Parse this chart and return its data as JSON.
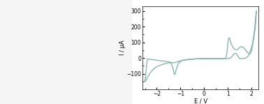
{
  "xlabel": "E / V",
  "ylabel": "I / μA",
  "xlim": [
    -2.6,
    2.3
  ],
  "ylim": [
    -200,
    330
  ],
  "xticks": [
    -2,
    -1,
    0,
    1,
    2
  ],
  "yticks": [
    -100,
    0,
    100,
    200,
    300
  ],
  "line_color": "#8ab5b2",
  "line_width": 1.0,
  "bg_color": "#ffffff",
  "mol_image": "left_placeholder",
  "cv_trace": [
    [
      -2.55,
      -150
    ],
    [
      -2.5,
      -148
    ],
    [
      -2.45,
      -140
    ],
    [
      -2.4,
      -125
    ],
    [
      -2.3,
      -100
    ],
    [
      -2.2,
      -80
    ],
    [
      -2.1,
      -65
    ],
    [
      -2.0,
      -55
    ],
    [
      -1.9,
      -48
    ],
    [
      -1.8,
      -43
    ],
    [
      -1.7,
      -38
    ],
    [
      -1.6,
      -34
    ],
    [
      -1.5,
      -30
    ],
    [
      -1.45,
      -30
    ],
    [
      -1.4,
      -33
    ],
    [
      -1.35,
      -50
    ],
    [
      -1.3,
      -75
    ],
    [
      -1.28,
      -95
    ],
    [
      -1.25,
      -105
    ],
    [
      -1.22,
      -100
    ],
    [
      -1.2,
      -85
    ],
    [
      -1.15,
      -60
    ],
    [
      -1.1,
      -40
    ],
    [
      -1.05,
      -28
    ],
    [
      -1.0,
      -22
    ],
    [
      -0.95,
      -18
    ],
    [
      -0.9,
      -15
    ],
    [
      -0.8,
      -12
    ],
    [
      -0.7,
      -10
    ],
    [
      -0.6,
      -8
    ],
    [
      -0.5,
      -7
    ],
    [
      -0.4,
      -6
    ],
    [
      -0.3,
      -5
    ],
    [
      -0.2,
      -5
    ],
    [
      -0.1,
      -4
    ],
    [
      0.0,
      -4
    ],
    [
      0.1,
      -4
    ],
    [
      0.2,
      -4
    ],
    [
      0.3,
      -4
    ],
    [
      0.4,
      -4
    ],
    [
      0.5,
      -4
    ],
    [
      0.6,
      -3
    ],
    [
      0.7,
      -3
    ],
    [
      0.8,
      -3
    ],
    [
      0.85,
      -3
    ],
    [
      0.9,
      -2
    ],
    [
      0.92,
      5
    ],
    [
      0.95,
      25
    ],
    [
      0.98,
      60
    ],
    [
      1.0,
      95
    ],
    [
      1.02,
      120
    ],
    [
      1.05,
      130
    ],
    [
      1.08,
      125
    ],
    [
      1.1,
      110
    ],
    [
      1.15,
      88
    ],
    [
      1.2,
      72
    ],
    [
      1.25,
      60
    ],
    [
      1.3,
      55
    ],
    [
      1.35,
      52
    ],
    [
      1.4,
      55
    ],
    [
      1.45,
      60
    ],
    [
      1.5,
      68
    ],
    [
      1.55,
      72
    ],
    [
      1.6,
      72
    ],
    [
      1.65,
      68
    ],
    [
      1.7,
      60
    ],
    [
      1.75,
      50
    ],
    [
      1.8,
      40
    ],
    [
      1.85,
      32
    ],
    [
      1.9,
      28
    ],
    [
      1.95,
      30
    ],
    [
      2.0,
      50
    ],
    [
      2.05,
      90
    ],
    [
      2.1,
      150
    ],
    [
      2.15,
      220
    ],
    [
      2.18,
      275
    ],
    [
      2.2,
      300
    ],
    [
      2.2,
      300
    ],
    [
      2.18,
      240
    ],
    [
      2.15,
      190
    ],
    [
      2.1,
      140
    ],
    [
      2.05,
      100
    ],
    [
      2.0,
      70
    ],
    [
      1.95,
      45
    ],
    [
      1.9,
      25
    ],
    [
      1.85,
      12
    ],
    [
      1.8,
      5
    ],
    [
      1.75,
      0
    ],
    [
      1.7,
      -2
    ],
    [
      1.65,
      -3
    ],
    [
      1.6,
      -4
    ],
    [
      1.5,
      -4
    ],
    [
      1.45,
      5
    ],
    [
      1.4,
      18
    ],
    [
      1.35,
      28
    ],
    [
      1.3,
      30
    ],
    [
      1.25,
      25
    ],
    [
      1.2,
      15
    ],
    [
      1.15,
      5
    ],
    [
      1.1,
      0
    ],
    [
      1.05,
      -2
    ],
    [
      1.0,
      -3
    ],
    [
      0.9,
      -4
    ],
    [
      0.8,
      -4
    ],
    [
      0.7,
      -4
    ],
    [
      0.6,
      -4
    ],
    [
      0.5,
      -4
    ],
    [
      0.4,
      -4
    ],
    [
      0.3,
      -4
    ],
    [
      0.2,
      -4
    ],
    [
      0.1,
      -4
    ],
    [
      0.0,
      -4
    ],
    [
      -0.1,
      -5
    ],
    [
      -0.2,
      -5
    ],
    [
      -0.3,
      -5
    ],
    [
      -0.4,
      -6
    ],
    [
      -0.5,
      -7
    ],
    [
      -0.6,
      -8
    ],
    [
      -0.7,
      -10
    ],
    [
      -0.8,
      -12
    ],
    [
      -0.9,
      -14
    ],
    [
      -0.95,
      -16
    ],
    [
      -1.0,
      -18
    ],
    [
      -1.05,
      -20
    ],
    [
      -1.1,
      -22
    ],
    [
      -1.15,
      -25
    ],
    [
      -1.2,
      -27
    ],
    [
      -1.25,
      -29
    ],
    [
      -1.3,
      -30
    ],
    [
      -1.35,
      -30
    ],
    [
      -1.4,
      -28
    ],
    [
      -1.45,
      -26
    ],
    [
      -1.5,
      -24
    ],
    [
      -1.6,
      -22
    ],
    [
      -1.7,
      -20
    ],
    [
      -1.8,
      -18
    ],
    [
      -1.9,
      -16
    ],
    [
      -2.0,
      -14
    ],
    [
      -2.1,
      -12
    ],
    [
      -2.2,
      -10
    ],
    [
      -2.3,
      -8
    ],
    [
      -2.4,
      -6
    ],
    [
      -2.5,
      -150
    ]
  ]
}
